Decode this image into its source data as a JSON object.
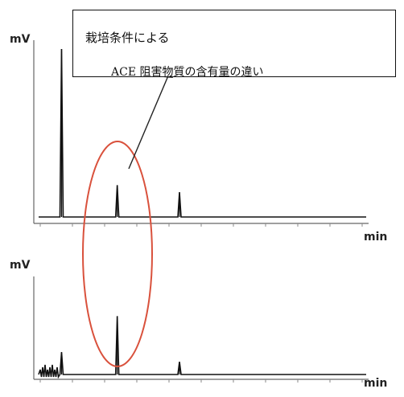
{
  "chart_data": [
    {
      "type": "line",
      "xlabel": "min",
      "ylabel": "mV",
      "peaks": [
        {
          "x": 0.07,
          "y": 0.95
        },
        {
          "x": 0.24,
          "y": 0.18
        },
        {
          "x": 0.43,
          "y": 0.14
        }
      ]
    },
    {
      "type": "line",
      "xlabel": "min",
      "ylabel": "mV",
      "peaks": [
        {
          "x": 0.07,
          "y": 0.23
        },
        {
          "x": 0.24,
          "y": 0.6
        },
        {
          "x": 0.43,
          "y": 0.13
        }
      ]
    }
  ],
  "annotation": {
    "line1": "栽培条件による",
    "line2": "ACE 阻害物質の含有量の違い"
  },
  "colors": {
    "trace": "#111111",
    "highlight_ellipse": "#d9513c"
  }
}
